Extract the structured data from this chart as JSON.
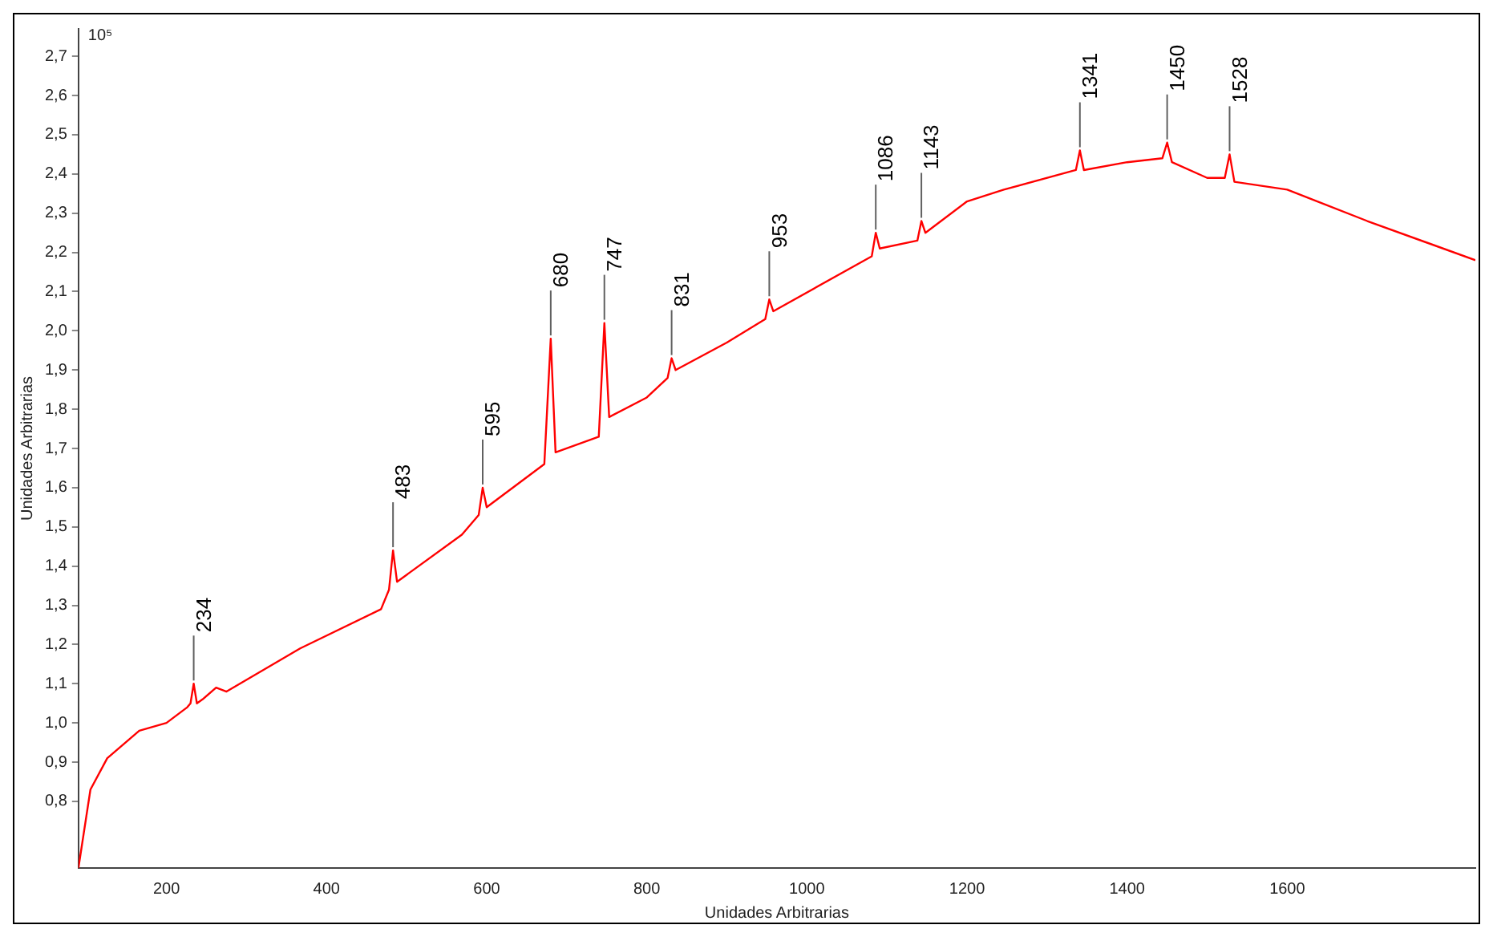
{
  "chart_data": {
    "type": "line",
    "xlabel": "Unidades Arbitrarias",
    "ylabel": "Unidades Arbitrarias",
    "x": [
      90,
      105,
      126,
      166,
      200,
      226,
      230,
      234,
      238,
      245,
      262,
      275,
      367,
      468,
      478,
      483,
      488,
      569,
      590,
      595,
      600,
      672,
      680,
      686,
      740,
      747,
      753,
      800,
      826,
      831,
      836,
      900,
      948,
      953,
      958,
      1081,
      1086,
      1091,
      1138,
      1143,
      1148,
      1200,
      1246,
      1336,
      1341,
      1346,
      1400,
      1444,
      1450,
      1456,
      1500,
      1522,
      1528,
      1534,
      1600,
      1700,
      1835
    ],
    "values": [
      0.63,
      0.83,
      0.91,
      0.98,
      1.0,
      1.04,
      1.05,
      1.1,
      1.05,
      1.06,
      1.09,
      1.08,
      1.19,
      1.29,
      1.34,
      1.44,
      1.36,
      1.48,
      1.53,
      1.6,
      1.55,
      1.66,
      1.98,
      1.69,
      1.73,
      2.02,
      1.78,
      1.83,
      1.88,
      1.93,
      1.9,
      1.97,
      2.03,
      2.08,
      2.05,
      2.19,
      2.25,
      2.21,
      2.23,
      2.28,
      2.25,
      2.33,
      2.36,
      2.41,
      2.46,
      2.41,
      2.43,
      2.44,
      2.48,
      2.43,
      2.39,
      2.39,
      2.45,
      2.38,
      2.36,
      2.28,
      2.18
    ],
    "color": "#ff0000",
    "marker": "none",
    "line_style": "solid",
    "grid": false,
    "legend": false,
    "xlim": [
      90,
      1835
    ],
    "xticks": [
      200,
      400,
      600,
      800,
      1000,
      1200,
      1400,
      1600
    ],
    "ylim": [
      0.63,
      2.77
    ],
    "yticks": [
      {
        "value": 0.8,
        "label": "0,8"
      },
      {
        "value": 0.9,
        "label": "0,9"
      },
      {
        "value": 1.0,
        "label": "1,0"
      },
      {
        "value": 1.1,
        "label": "1,1"
      },
      {
        "value": 1.2,
        "label": "1,2"
      },
      {
        "value": 1.3,
        "label": "1,3"
      },
      {
        "value": 1.4,
        "label": "1,4"
      },
      {
        "value": 1.5,
        "label": "1,5"
      },
      {
        "value": 1.6,
        "label": "1,6"
      },
      {
        "value": 1.7,
        "label": "1,7"
      },
      {
        "value": 1.8,
        "label": "1,8"
      },
      {
        "value": 1.9,
        "label": "1,9"
      },
      {
        "value": 2.0,
        "label": "2,0"
      },
      {
        "value": 2.1,
        "label": "2,1"
      },
      {
        "value": 2.2,
        "label": "2,2"
      },
      {
        "value": 2.3,
        "label": "2,3"
      },
      {
        "value": 2.4,
        "label": "2,4"
      },
      {
        "value": 2.5,
        "label": "2,5"
      },
      {
        "value": 2.6,
        "label": "2,6"
      },
      {
        "value": 2.7,
        "label": "2,7"
      }
    ],
    "annotations": [
      "10⁵",
      {
        "text": "234",
        "x": 234,
        "y": 1.1
      },
      {
        "text": "483",
        "x": 483,
        "y": 1.44
      },
      {
        "text": "595",
        "x": 595,
        "y": 1.6
      },
      {
        "text": "680",
        "x": 680,
        "y": 1.98
      },
      {
        "text": "747",
        "x": 747,
        "y": 2.02
      },
      {
        "text": "831",
        "x": 831,
        "y": 1.93
      },
      {
        "text": "953",
        "x": 953,
        "y": 2.08
      },
      {
        "text": "1086",
        "x": 1086,
        "y": 2.25
      },
      {
        "text": "1143",
        "x": 1143,
        "y": 2.28
      },
      {
        "text": "1341",
        "x": 1341,
        "y": 2.46
      },
      {
        "text": "1450",
        "x": 1450,
        "y": 2.48
      },
      {
        "text": "1528",
        "x": 1528,
        "y": 2.45
      }
    ]
  }
}
